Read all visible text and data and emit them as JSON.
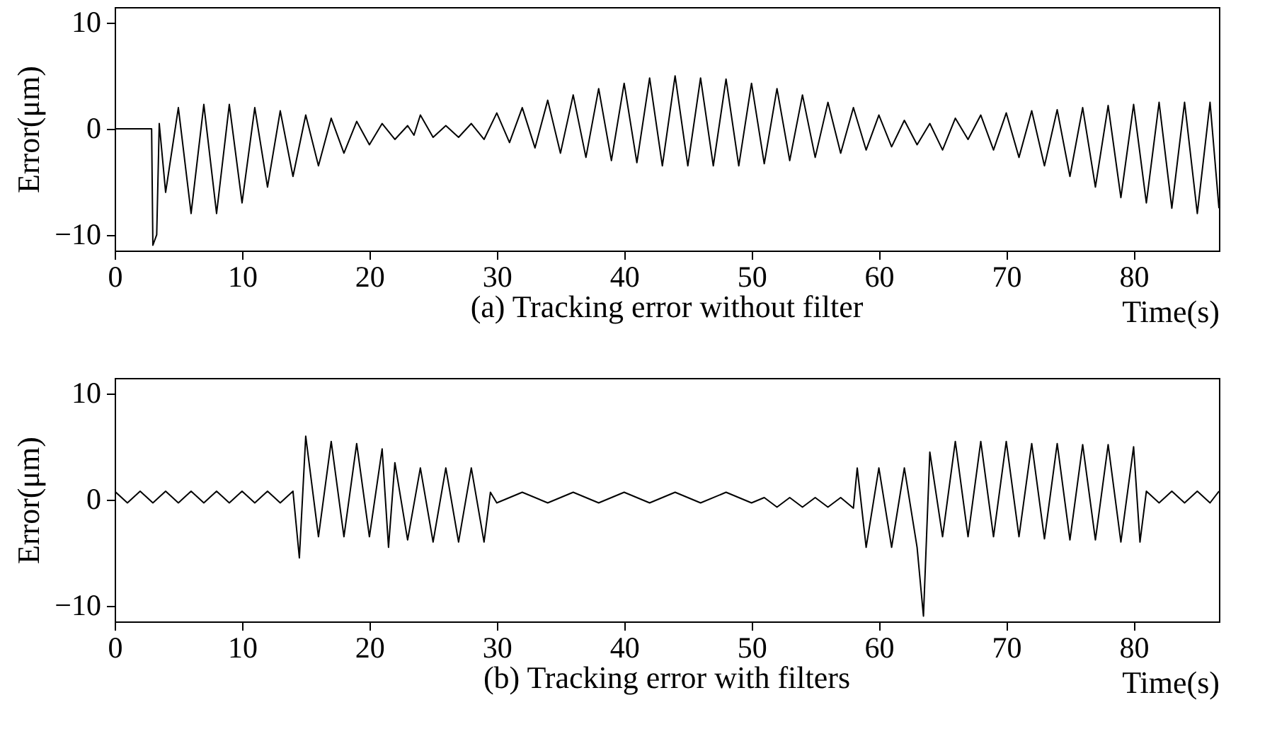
{
  "chart_data": [
    {
      "type": "line",
      "title": "(a) Tracking error without filter",
      "xlabel": "Time(s)",
      "ylabel": "Error(μm)",
      "xlim": [
        0,
        86.7
      ],
      "xticks": [
        0,
        10,
        20,
        30,
        40,
        50,
        60,
        70,
        80
      ],
      "ylim": [
        -11.5,
        11.5
      ],
      "yticks": [
        -10,
        0,
        10
      ],
      "x": [
        0,
        2.9,
        3,
        3.3,
        3.5,
        4,
        5,
        6,
        7,
        8,
        9,
        10,
        11,
        12,
        13,
        14,
        15,
        16,
        17,
        18,
        19,
        20,
        21,
        22,
        23,
        23.5,
        24,
        25,
        26,
        27,
        28,
        29,
        30,
        31,
        32,
        33,
        34,
        35,
        36,
        37,
        38,
        39,
        40,
        41,
        42,
        43,
        44,
        45,
        46,
        47,
        48,
        49,
        50,
        51,
        52,
        53,
        54,
        55,
        56,
        57,
        58,
        59,
        60,
        61,
        62,
        63,
        64,
        65,
        66,
        67,
        68,
        69,
        70,
        71,
        72,
        73,
        74,
        75,
        76,
        77,
        78,
        79,
        80,
        81,
        82,
        83,
        84,
        85,
        86,
        86.7
      ],
      "series": [
        {
          "color": "#000000",
          "values": [
            0,
            0,
            -11,
            -10,
            0.5,
            -6,
            2,
            -8,
            2.3,
            -8,
            2.3,
            -7,
            2,
            -5.5,
            1.7,
            -4.5,
            1.3,
            -3.5,
            1,
            -2.3,
            0.7,
            -1.5,
            0.5,
            -1,
            0.3,
            -0.6,
            1.3,
            -0.8,
            0.3,
            -0.8,
            0.5,
            -1,
            1.5,
            -1.3,
            2,
            -1.8,
            2.7,
            -2.3,
            3.2,
            -2.7,
            3.8,
            -3,
            4.3,
            -3.2,
            4.8,
            -3.5,
            5,
            -3.5,
            4.8,
            -3.5,
            4.7,
            -3.5,
            4.3,
            -3.3,
            3.8,
            -3,
            3.2,
            -2.7,
            2.5,
            -2.3,
            2,
            -2,
            1.3,
            -1.7,
            0.8,
            -1.5,
            0.5,
            -2,
            1,
            -1,
            1.3,
            -2,
            1.5,
            -2.7,
            1.7,
            -3.5,
            1.8,
            -4.5,
            2,
            -5.5,
            2.2,
            -6.5,
            2.3,
            -7,
            2.5,
            -7.5,
            2.5,
            -8,
            2.5,
            -7.5
          ]
        }
      ]
    },
    {
      "type": "line",
      "title": "(b) Tracking error with filters",
      "xlabel": "Time(s)",
      "ylabel": "Error(μm)",
      "xlim": [
        0,
        86.7
      ],
      "xticks": [
        0,
        10,
        20,
        30,
        40,
        50,
        60,
        70,
        80
      ],
      "ylim": [
        -11.5,
        11.5
      ],
      "yticks": [
        -10,
        0,
        10
      ],
      "x": [
        0,
        1,
        2,
        3,
        4,
        5,
        6,
        7,
        8,
        9,
        10,
        11,
        12,
        13,
        14,
        14.5,
        15,
        16,
        17,
        18,
        19,
        20,
        21,
        21.5,
        22,
        23,
        24,
        25,
        26,
        27,
        28,
        29,
        29.5,
        30,
        32,
        34,
        36,
        38,
        40,
        42,
        44,
        46,
        48,
        50,
        51,
        52,
        53,
        54,
        55,
        56,
        57,
        58,
        58.3,
        59,
        60,
        61,
        62,
        63,
        63.5,
        64,
        65,
        66,
        67,
        68,
        69,
        70,
        71,
        72,
        73,
        74,
        75,
        76,
        77,
        78,
        79,
        80,
        80.5,
        81,
        82,
        83,
        84,
        85,
        86,
        86.7
      ],
      "series": [
        {
          "color": "#000000",
          "values": [
            0.8,
            -0.3,
            0.8,
            -0.3,
            0.8,
            -0.3,
            0.8,
            -0.3,
            0.8,
            -0.3,
            0.8,
            -0.3,
            0.8,
            -0.3,
            0.8,
            -5.5,
            6,
            -3.5,
            5.5,
            -3.5,
            5.3,
            -3.5,
            4.8,
            -4.5,
            3.5,
            -3.8,
            3,
            -4,
            3,
            -4,
            3,
            -4,
            0.7,
            -0.3,
            0.7,
            -0.3,
            0.7,
            -0.3,
            0.7,
            -0.3,
            0.7,
            -0.3,
            0.7,
            -0.3,
            0.2,
            -0.7,
            0.2,
            -0.7,
            0.2,
            -0.7,
            0.2,
            -0.8,
            3,
            -4.5,
            3,
            -4.5,
            3,
            -4.5,
            -11,
            4.5,
            -3.5,
            5.5,
            -3.5,
            5.5,
            -3.5,
            5.5,
            -3.5,
            5.3,
            -3.7,
            5.3,
            -3.8,
            5.2,
            -3.8,
            5.2,
            -4,
            5,
            -4,
            0.8,
            -0.3,
            0.8,
            -0.3,
            0.8,
            -0.3,
            0.8
          ]
        }
      ]
    }
  ]
}
